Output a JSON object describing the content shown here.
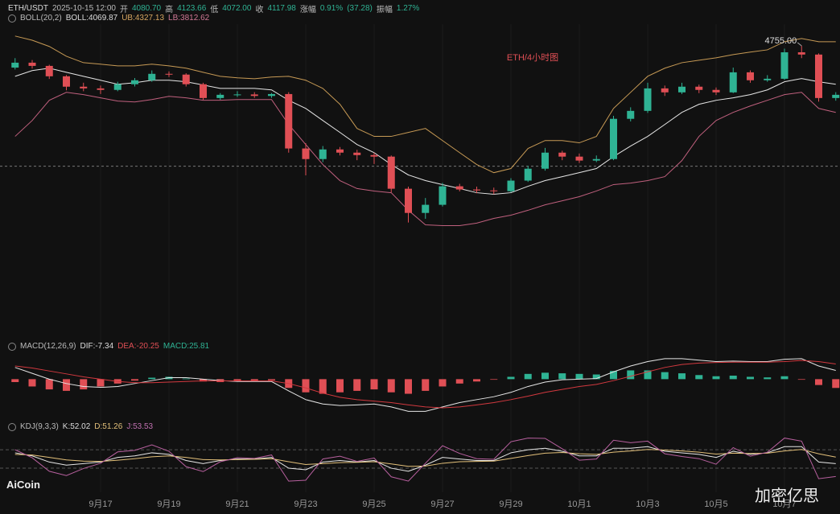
{
  "header": {
    "symbol": "ETH/USDT",
    "time": "2025-10-15 12:00",
    "open_label": "开",
    "open": "4080.70",
    "high_label": "高",
    "high": "4123.66",
    "low_label": "低",
    "low": "4072.00",
    "close_label": "收",
    "close": 4117.98,
    "change_label": "涨幅",
    "change": "0.91%",
    "change_abs": "(37.28)",
    "amp_label": "振幅",
    "amp": "1.27%"
  },
  "indicator_labels": {
    "boll": "BOLL(20,2)",
    "boll_mid": "BOLL:4069.87",
    "boll_ub": "UB:4327.13",
    "boll_lb": "LB:3812.62",
    "macd": "MACD(12,26,9)",
    "dif": "DIF:-7.34",
    "dea": "DEA:-20.25",
    "macd_val": "MACD:25.81",
    "kdj": "KDJ(9,3,3)",
    "k": "K:52.02",
    "d": "D:51.26",
    "j": "J:53.53"
  },
  "watermarks": {
    "left": "AiCoin",
    "right": "加密亿思"
  },
  "chart_data": [
    {
      "type": "candlestick",
      "title": "ETH/4小时图",
      "max_label": "4755.00",
      "up_color": "#2fb394",
      "down_color": "#e04f55",
      "ylim": [
        3210,
        4870
      ],
      "categories": [
        null,
        null,
        null,
        null,
        null,
        "9月17",
        null,
        null,
        null,
        "9月19",
        null,
        null,
        null,
        "9月21",
        null,
        null,
        null,
        "9月23",
        null,
        null,
        null,
        "9月25",
        null,
        null,
        null,
        "9月27",
        null,
        null,
        null,
        "9月29",
        null,
        null,
        null,
        "10月1",
        null,
        null,
        null,
        "10月3",
        null,
        null,
        null,
        "10月5",
        null,
        null,
        null,
        "10月7",
        null,
        null,
        null
      ],
      "open": [
        4640,
        4666,
        4649,
        4594,
        4539,
        4530,
        4522,
        4552,
        4573,
        4607,
        4603,
        4552,
        4479,
        4496,
        4498,
        4490,
        4500,
        4212,
        4156,
        4207,
        4190,
        4177,
        4169,
        3999,
        3871,
        3914,
        4012,
        3995,
        3990,
        3986,
        4042,
        4105,
        4190,
        4169,
        4148,
        4156,
        4369,
        4411,
        4530,
        4509,
        4539,
        4522,
        4509,
        4615,
        4573,
        4581,
        4721,
        4709,
        4479
      ],
      "high": [
        4690,
        4680,
        4655,
        4600,
        4560,
        4545,
        4565,
        4585,
        4625,
        4620,
        4610,
        4560,
        4505,
        4515,
        4510,
        4505,
        4510,
        4240,
        4225,
        4220,
        4205,
        4190,
        4175,
        4010,
        3950,
        4030,
        4025,
        4010,
        4005,
        4055,
        4120,
        4215,
        4200,
        4185,
        4175,
        4385,
        4430,
        4560,
        4545,
        4560,
        4550,
        4535,
        4640,
        4625,
        4600,
        4740,
        4755,
        4715,
        4510
      ],
      "low": [
        4630,
        4635,
        4580,
        4520,
        4515,
        4500,
        4515,
        4540,
        4565,
        4590,
        4540,
        4470,
        4470,
        4485,
        4480,
        4480,
        4190,
        4070,
        4140,
        4175,
        4150,
        4130,
        3980,
        3820,
        3840,
        3905,
        3985,
        3975,
        3970,
        3980,
        4035,
        4095,
        4150,
        4135,
        4140,
        4150,
        4355,
        4400,
        4490,
        4500,
        4505,
        4495,
        4505,
        4560,
        4565,
        4575,
        4690,
        4460,
        4465
      ],
      "close": [
        4666,
        4649,
        4594,
        4539,
        4530,
        4522,
        4552,
        4573,
        4607,
        4603,
        4552,
        4479,
        4496,
        4498,
        4490,
        4500,
        4212,
        4156,
        4207,
        4190,
        4177,
        4169,
        3999,
        3871,
        3914,
        4012,
        3995,
        3990,
        3986,
        4042,
        4105,
        4190,
        4169,
        4148,
        4156,
        4369,
        4411,
        4530,
        4509,
        4539,
        4522,
        4509,
        4615,
        4573,
        4581,
        4721,
        4709,
        4479,
        4496
      ],
      "series": [
        {
          "name": "UB",
          "color": "#c79a55",
          "values": [
            4807,
            4785,
            4752,
            4700,
            4666,
            4658,
            4649,
            4649,
            4658,
            4649,
            4637,
            4615,
            4594,
            4586,
            4581,
            4590,
            4594,
            4573,
            4530,
            4446,
            4318,
            4276,
            4276,
            4297,
            4318,
            4254,
            4190,
            4127,
            4084,
            4106,
            4212,
            4254,
            4254,
            4242,
            4276,
            4424,
            4509,
            4594,
            4637,
            4666,
            4679,
            4692,
            4709,
            4722,
            4734,
            4777,
            4794,
            4777,
            4777
          ]
        },
        {
          "name": "BOLL",
          "color": "#e6e6e6",
          "values": [
            4594,
            4624,
            4637,
            4615,
            4594,
            4573,
            4552,
            4560,
            4573,
            4573,
            4565,
            4548,
            4530,
            4530,
            4530,
            4522,
            4467,
            4424,
            4360,
            4297,
            4233,
            4190,
            4127,
            4072,
            4042,
            4021,
            4000,
            3978,
            3970,
            3978,
            4012,
            4042,
            4063,
            4084,
            4106,
            4169,
            4225,
            4276,
            4339,
            4403,
            4446,
            4467,
            4480,
            4497,
            4522,
            4565,
            4582,
            4565,
            4552
          ]
        },
        {
          "name": "LB",
          "color": "#c0607e",
          "values": [
            4276,
            4360,
            4467,
            4509,
            4497,
            4480,
            4463,
            4458,
            4471,
            4488,
            4480,
            4467,
            4467,
            4471,
            4471,
            4471,
            4339,
            4233,
            4127,
            4042,
            4000,
            3987,
            3978,
            3885,
            3808,
            3804,
            3804,
            3817,
            3842,
            3859,
            3885,
            3914,
            3935,
            3957,
            3987,
            4021,
            4029,
            4042,
            4063,
            4148,
            4276,
            4360,
            4403,
            4437,
            4467,
            4497,
            4509,
            4424,
            4403
          ]
        }
      ]
    },
    {
      "type": "macd",
      "ylim": [
        -120,
        100
      ],
      "up_color": "#2fb394",
      "down_color": "#e04f55",
      "values": [
        -10,
        -25,
        -35,
        -40,
        -35,
        -25,
        -15,
        -5,
        5,
        8,
        2,
        -8,
        -10,
        -8,
        -5,
        -4,
        -30,
        -45,
        -50,
        -45,
        -40,
        -35,
        -45,
        -50,
        -40,
        -25,
        -15,
        -8,
        -2,
        8,
        18,
        22,
        20,
        18,
        16,
        28,
        30,
        30,
        24,
        20,
        14,
        10,
        12,
        8,
        6,
        10,
        -2,
        -20,
        -30
      ],
      "series": [
        {
          "name": "DIF",
          "color": "#e6e6e6",
          "values": [
            40,
            20,
            0,
            -15,
            -25,
            -28,
            -25,
            -15,
            -5,
            5,
            5,
            0,
            -5,
            -8,
            -8,
            -8,
            -40,
            -70,
            -85,
            -90,
            -88,
            -85,
            -95,
            -110,
            -110,
            -95,
            -80,
            -70,
            -60,
            -45,
            -25,
            -10,
            -2,
            0,
            2,
            25,
            45,
            60,
            70,
            70,
            65,
            60,
            62,
            60,
            60,
            68,
            70,
            45,
            30
          ]
        },
        {
          "name": "DEA",
          "color": "#d2393f",
          "values": [
            45,
            38,
            28,
            18,
            8,
            0,
            -8,
            -12,
            -12,
            -10,
            -8,
            -6,
            -6,
            -6,
            -6,
            -6,
            -15,
            -30,
            -48,
            -62,
            -70,
            -75,
            -80,
            -88,
            -95,
            -98,
            -95,
            -88,
            -80,
            -70,
            -58,
            -45,
            -35,
            -25,
            -18,
            -5,
            10,
            25,
            40,
            50,
            55,
            57,
            58,
            58,
            58,
            60,
            64,
            60,
            52
          ]
        }
      ]
    },
    {
      "type": "kdj",
      "ylim": [
        -40,
        130
      ],
      "guide_lines": [
        20,
        80
      ],
      "series": [
        {
          "name": "K",
          "color": "#e6e6e6",
          "values": [
            70,
            60,
            40,
            30,
            35,
            40,
            55,
            60,
            70,
            65,
            45,
            35,
            45,
            50,
            50,
            55,
            20,
            15,
            40,
            45,
            40,
            45,
            20,
            10,
            30,
            55,
            50,
            45,
            45,
            70,
            80,
            85,
            75,
            60,
            60,
            85,
            85,
            90,
            75,
            70,
            65,
            55,
            75,
            65,
            70,
            90,
            90,
            40,
            35
          ]
        },
        {
          "name": "D",
          "color": "#e3c07a",
          "values": [
            65,
            63,
            55,
            47,
            43,
            42,
            46,
            51,
            57,
            60,
            55,
            48,
            47,
            48,
            49,
            51,
            41,
            32,
            35,
            38,
            39,
            41,
            34,
            26,
            27,
            36,
            41,
            42,
            43,
            52,
            61,
            69,
            71,
            67,
            65,
            72,
            76,
            81,
            79,
            76,
            72,
            66,
            69,
            68,
            69,
            76,
            81,
            67,
            56
          ]
        },
        {
          "name": "J",
          "color": "#b8609f",
          "values": [
            80,
            54,
            10,
            -4,
            19,
            36,
            73,
            78,
            96,
            75,
            25,
            9,
            41,
            54,
            52,
            63,
            -22,
            -19,
            50,
            59,
            42,
            53,
            -8,
            -22,
            36,
            93,
            68,
            51,
            49,
            106,
            118,
            117,
            83,
            46,
            50,
            111,
            103,
            108,
            67,
            58,
            51,
            33,
            87,
            59,
            72,
            118,
            108,
            -14,
            -7
          ]
        }
      ]
    }
  ]
}
